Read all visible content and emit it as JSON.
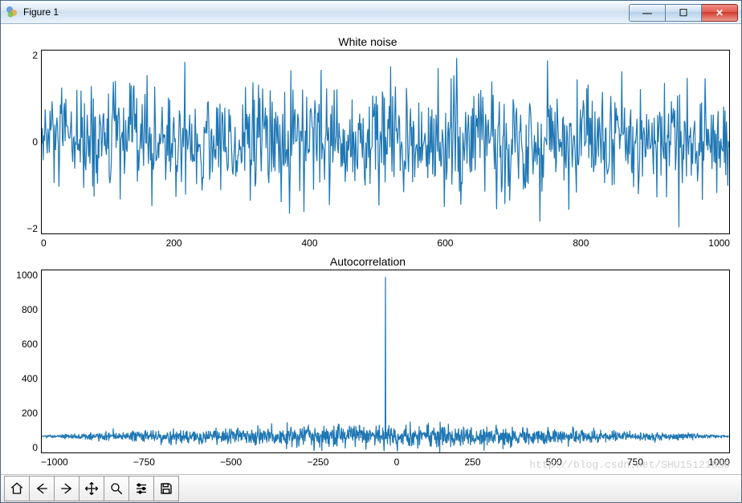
{
  "window": {
    "title": "Figure 1"
  },
  "window_controls": {
    "minimize_glyph": "—",
    "maximize_glyph": "☐",
    "close_glyph": "✕"
  },
  "charts": {
    "noise": {
      "type": "line",
      "title": "White noise",
      "line_color": "#1f77b4",
      "line_width": 1.2,
      "background_color": "#ffffff",
      "border_color": "#000000",
      "xlim": [
        0,
        1000
      ],
      "ylim": [
        -3.3,
        3.3
      ],
      "xtick_step": 200,
      "xtick_labels": [
        "0",
        "200",
        "400",
        "600",
        "800",
        "1000"
      ],
      "ytick_labels": [
        "2",
        "0",
        "−2"
      ],
      "n_points": 1000,
      "seed": 12345,
      "title_fontsize": 14,
      "tick_fontsize": 12
    },
    "acorr": {
      "type": "line",
      "title": "Autocorrelation",
      "line_color": "#1f77b4",
      "line_width": 1.2,
      "background_color": "#ffffff",
      "border_color": "#000000",
      "xlim": [
        -1000,
        1000
      ],
      "ylim": [
        -100,
        1000
      ],
      "xtick_step": 250,
      "xtick_labels": [
        "−1000",
        "−750",
        "−500",
        "−250",
        "0",
        "250",
        "500",
        "750",
        "1000"
      ],
      "ytick_labels": [
        "1000",
        "800",
        "600",
        "400",
        "200",
        "0"
      ],
      "peak_value": 960,
      "side_amp": 70,
      "n_lags": 1000,
      "title_fontsize": 14,
      "tick_fontsize": 12
    }
  },
  "toolbar": {
    "home_name": "home-icon",
    "back_name": "back-icon",
    "forward_name": "forward-icon",
    "pan_name": "pan-icon",
    "zoom_name": "zoom-icon",
    "configure_name": "subplots-config-icon",
    "save_name": "save-icon"
  },
  "watermark": "http://blog.csdn.net/SHU15121856"
}
